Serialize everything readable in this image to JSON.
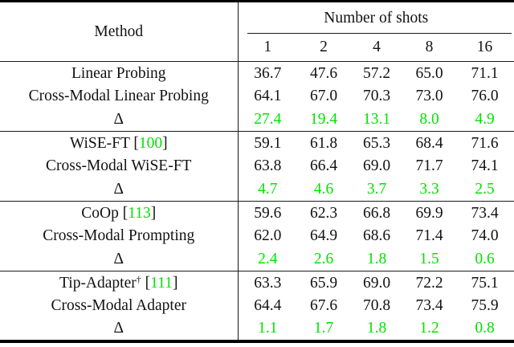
{
  "colors": {
    "delta_green": "#00e400",
    "citation_green": "#00e400"
  },
  "header": {
    "method_label": "Method",
    "shots_label": "Number of shots",
    "shot_columns": [
      "1",
      "2",
      "4",
      "8",
      "16"
    ]
  },
  "groups": [
    {
      "name": "linear-probing",
      "rows": [
        {
          "method": "Linear Probing",
          "values": [
            "36.7",
            "47.6",
            "57.2",
            "65.0",
            "71.1"
          ]
        },
        {
          "method": "Cross-Modal Linear Probing",
          "values": [
            "64.1",
            "67.0",
            "70.3",
            "73.0",
            "76.0"
          ]
        },
        {
          "method": "Δ",
          "is_delta": true,
          "values": [
            "27.4",
            "19.4",
            "13.1",
            "8.0",
            "4.9"
          ]
        }
      ]
    },
    {
      "name": "wise-ft",
      "rows": [
        {
          "method": "WiSE-FT",
          "cite_open": " [",
          "citation": "100",
          "cite_close": "]",
          "values": [
            "59.1",
            "61.8",
            "65.3",
            "68.4",
            "71.6"
          ]
        },
        {
          "method": "Cross-Modal WiSE-FT",
          "values": [
            "63.8",
            "66.4",
            "69.0",
            "71.7",
            "74.1"
          ]
        },
        {
          "method": "Δ",
          "is_delta": true,
          "values": [
            "4.7",
            "4.6",
            "3.7",
            "3.3",
            "2.5"
          ]
        }
      ]
    },
    {
      "name": "coop",
      "rows": [
        {
          "method": "CoOp",
          "cite_open": " [",
          "citation": "113",
          "cite_close": "]",
          "values": [
            "59.6",
            "62.3",
            "66.8",
            "69.9",
            "73.4"
          ]
        },
        {
          "method": "Cross-Modal Prompting",
          "values": [
            "62.0",
            "64.9",
            "68.6",
            "71.4",
            "74.0"
          ]
        },
        {
          "method": "Δ",
          "is_delta": true,
          "values": [
            "2.4",
            "2.6",
            "1.8",
            "1.5",
            "0.6"
          ]
        }
      ]
    },
    {
      "name": "tip-adapter",
      "rows": [
        {
          "method": "Tip-Adapter",
          "method_sup": "†",
          "cite_open": " [",
          "citation": "111",
          "cite_close": "]",
          "values": [
            "63.3",
            "65.9",
            "69.0",
            "72.2",
            "75.1"
          ]
        },
        {
          "method": "Cross-Modal Adapter",
          "values": [
            "64.4",
            "67.6",
            "70.8",
            "73.4",
            "75.9"
          ]
        },
        {
          "method": "Δ",
          "is_delta": true,
          "values": [
            "1.1",
            "1.7",
            "1.8",
            "1.2",
            "0.8"
          ]
        }
      ]
    }
  ]
}
